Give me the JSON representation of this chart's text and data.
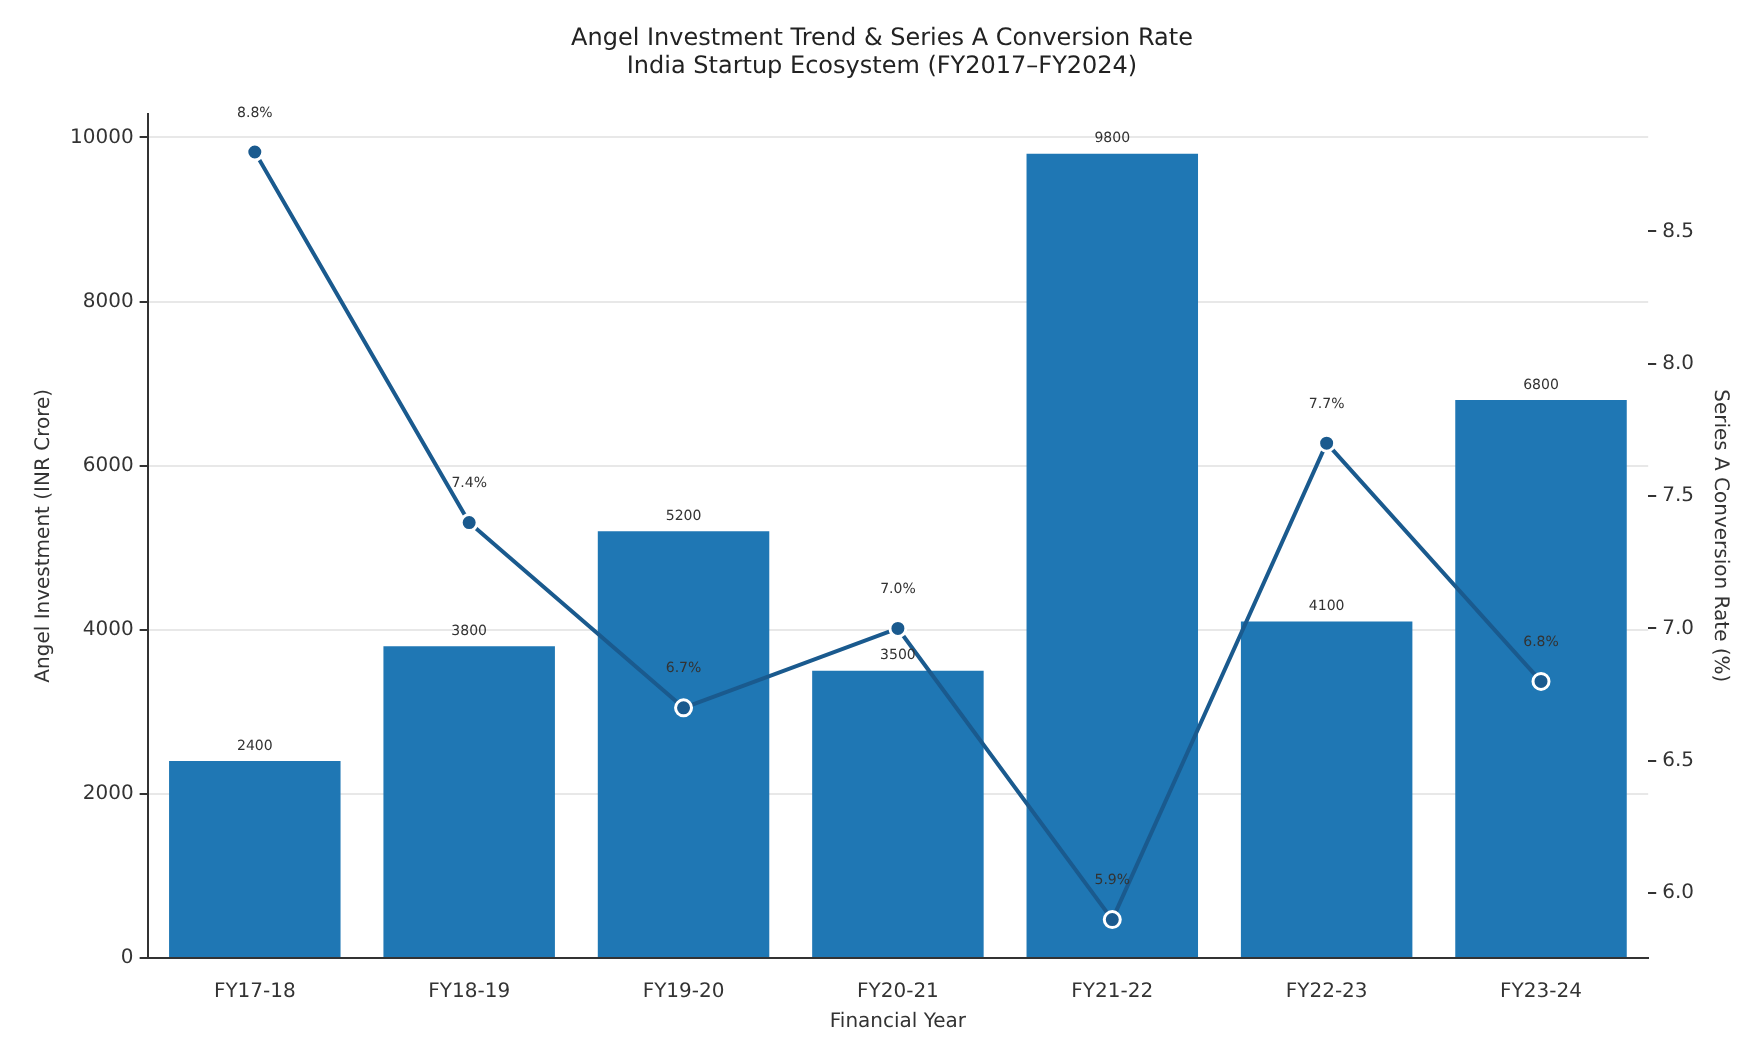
{
  "chart_data": {
    "type": "bar",
    "title": "Angel Investment Trend & Series A Conversion Rate",
    "subtitle": "India Startup Ecosystem (FY2017–FY2024)",
    "xlabel": "Financial Year",
    "ylabel": "Angel Investment (INR Crore)",
    "y2label": "Series A Conversion Rate (%)",
    "categories": [
      "FY17-18",
      "FY18-19",
      "FY19-20",
      "FY20-21",
      "FY21-22",
      "FY22-23",
      "FY23-24"
    ],
    "series": [
      {
        "color": "#1f77b4",
        "values": [
          2400,
          3800,
          5200,
          3500,
          9800,
          4100,
          6800
        ]
      },
      {
        "type": "line",
        "axis": "y2",
        "color": "#1a5a8e",
        "marker": "circle",
        "values": [
          8.8,
          7.4,
          6.7,
          7.0,
          5.9,
          7.7,
          6.8
        ],
        "value_labels": [
          "8.8%",
          "7.4%",
          "6.7%",
          "7.0%",
          "5.9%",
          "7.7%",
          "6.8%"
        ]
      }
    ],
    "ylim": [
      0,
      10290
    ],
    "yticks": [
      0,
      2000,
      4000,
      6000,
      8000,
      10000
    ],
    "y2lim": [
      5.755,
      8.945
    ],
    "y2ticks": [
      {
        "value": 6,
        "label": "6.0"
      },
      6.5,
      {
        "value": 7,
        "label": "7.0"
      },
      7.5,
      {
        "value": 8,
        "label": "8.0"
      },
      8.5
    ],
    "data_labels": true,
    "grid": "y",
    "legend": false
  }
}
